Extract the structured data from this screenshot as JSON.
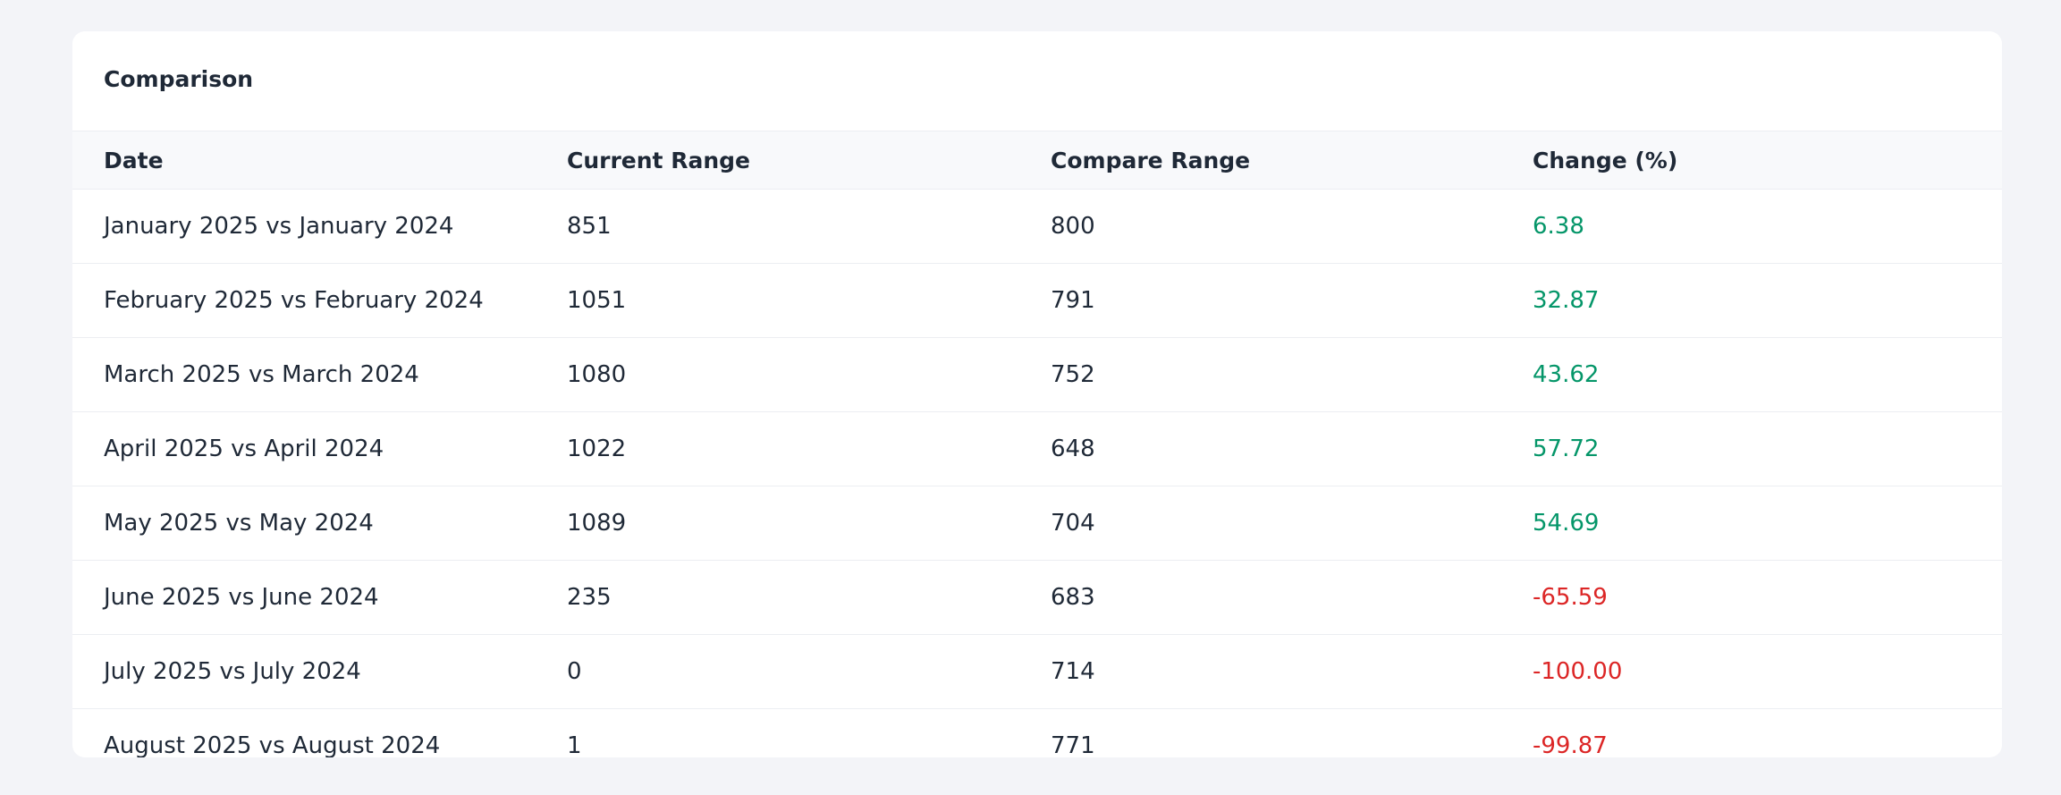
{
  "header": {
    "title": "Comparison"
  },
  "table": {
    "columns": [
      "Date",
      "Current Range",
      "Compare Range",
      "Change (%)"
    ],
    "rows": [
      [
        "January 2025 vs January 2024",
        "851",
        "800",
        "6.38"
      ],
      [
        "February 2025 vs February 2024",
        "1051",
        "791",
        "32.87"
      ],
      [
        "March 2025 vs March 2024",
        "1080",
        "752",
        "43.62"
      ],
      [
        "April 2025 vs April 2024",
        "1022",
        "648",
        "57.72"
      ],
      [
        "May 2025 vs May 2024",
        "1089",
        "704",
        "54.69"
      ],
      [
        "June 2025 vs June 2024",
        "235",
        "683",
        "-65.59"
      ],
      [
        "July 2025 vs July 2024",
        "0",
        "714",
        "-100.00"
      ],
      [
        "August 2025 vs August 2024",
        "1",
        "771",
        "-99.87"
      ]
    ]
  }
}
